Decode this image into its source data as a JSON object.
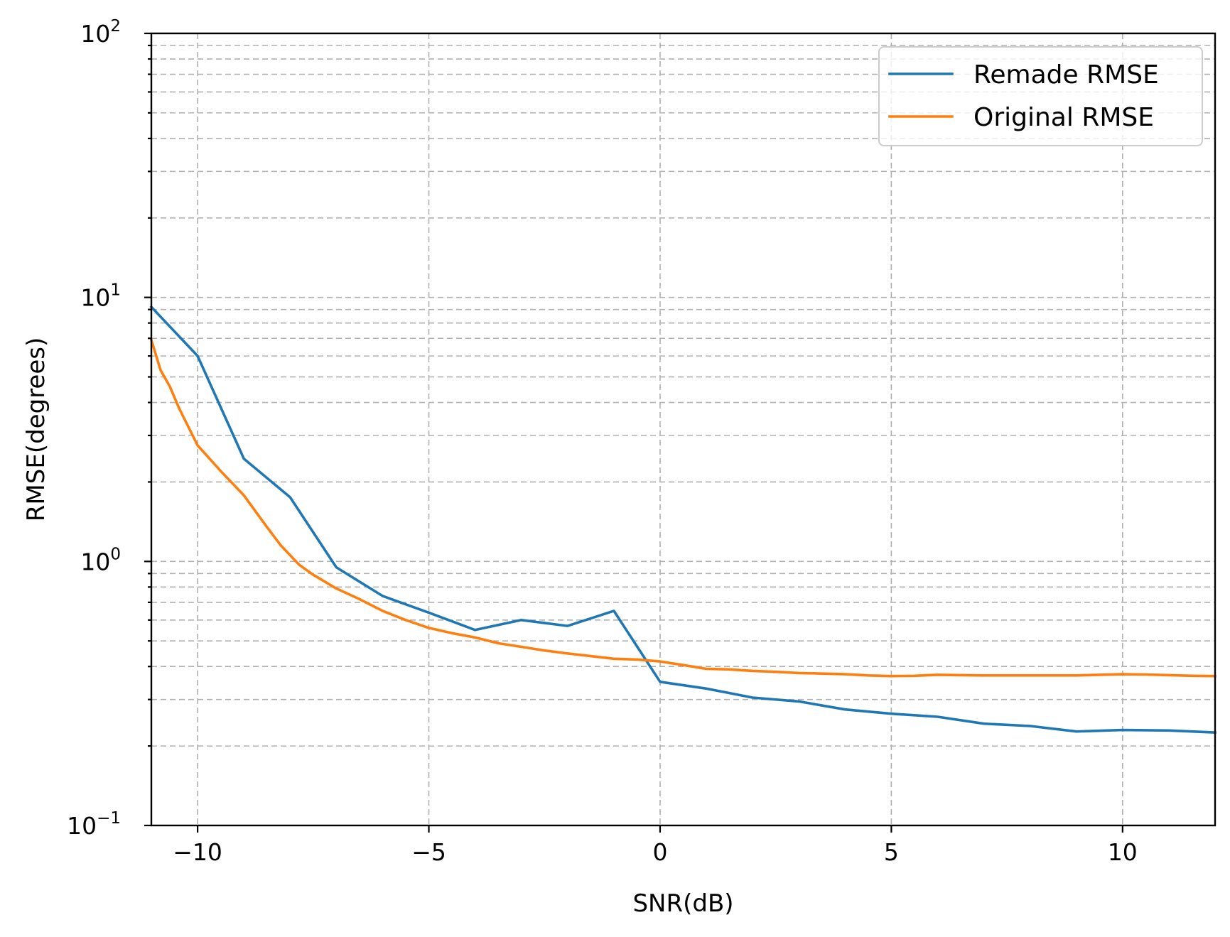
{
  "chart_data": {
    "type": "line",
    "title": "",
    "xlabel": "SNR(dB)",
    "ylabel": "RMSE(degrees)",
    "xlim": [
      -11,
      12
    ],
    "ylim": [
      0.1,
      100
    ],
    "yscale": "log",
    "grid": true,
    "grid_style": "dashed, major and minor",
    "legend_placement": "top-right",
    "x_ticks": [
      -10,
      -5,
      0,
      5,
      10
    ],
    "x_tick_labels": [
      "−10",
      "−5",
      "0",
      "5",
      "10"
    ],
    "y_ticks": [
      0.1,
      1,
      10,
      100
    ],
    "y_tick_labels": [
      {
        "base": "10",
        "exp": "−1"
      },
      {
        "base": "10",
        "exp": "0"
      },
      {
        "base": "10",
        "exp": "1"
      },
      {
        "base": "10",
        "exp": "2"
      }
    ],
    "series": [
      {
        "name": "Remade RMSE",
        "color": "#1f77b4",
        "x": [
          -11,
          -10,
          -9,
          -8,
          -7,
          -6,
          -5,
          -4,
          -3,
          -2,
          -1,
          0,
          1,
          2,
          3,
          4,
          5,
          6,
          7,
          8,
          9,
          10,
          11,
          12
        ],
        "y": [
          9.2,
          6.0,
          2.45,
          1.75,
          0.95,
          0.74,
          0.64,
          0.55,
          0.6,
          0.57,
          0.65,
          0.35,
          0.33,
          0.305,
          0.295,
          0.275,
          0.265,
          0.258,
          0.243,
          0.238,
          0.227,
          0.23,
          0.229,
          0.225
        ]
      },
      {
        "name": "Original RMSE",
        "color": "#ff7f0e",
        "x": [
          -11,
          -10.8,
          -10.6,
          -10.4,
          -10,
          -9.5,
          -9,
          -8.5,
          -8.2,
          -7.8,
          -7.5,
          -7,
          -6.5,
          -6,
          -5.5,
          -5,
          -4.5,
          -4,
          -3.5,
          -3,
          -2.5,
          -2,
          -1.5,
          -1,
          -0.5,
          0,
          0.5,
          1,
          1.5,
          2,
          2.5,
          3,
          3.5,
          4,
          4.5,
          5,
          5.5,
          6,
          6.5,
          7,
          7.5,
          8,
          8.5,
          9,
          9.5,
          10,
          10.5,
          11,
          11.5,
          12
        ],
        "y": [
          6.9,
          5.3,
          4.6,
          3.8,
          2.75,
          2.2,
          1.78,
          1.35,
          1.15,
          0.97,
          0.89,
          0.79,
          0.72,
          0.65,
          0.6,
          0.56,
          0.535,
          0.515,
          0.49,
          0.475,
          0.46,
          0.448,
          0.438,
          0.428,
          0.425,
          0.418,
          0.405,
          0.392,
          0.39,
          0.385,
          0.382,
          0.378,
          0.376,
          0.374,
          0.37,
          0.368,
          0.369,
          0.372,
          0.371,
          0.37,
          0.37,
          0.37,
          0.37,
          0.37,
          0.372,
          0.374,
          0.373,
          0.371,
          0.369,
          0.368
        ]
      }
    ]
  }
}
